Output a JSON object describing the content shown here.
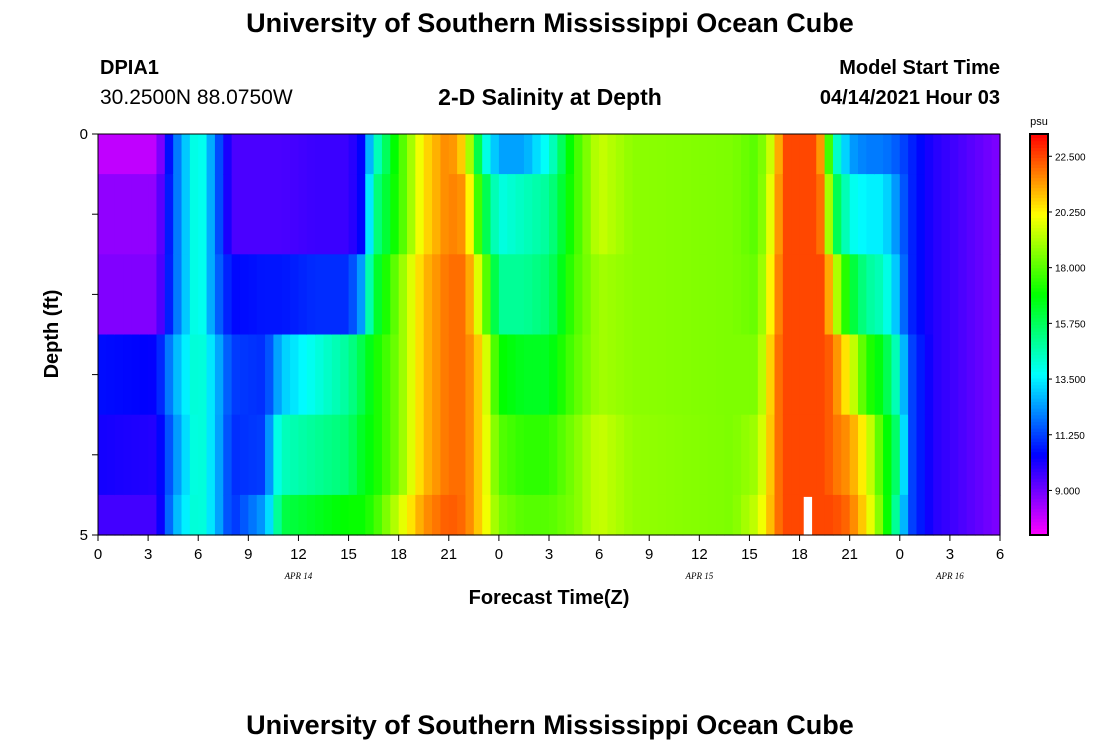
{
  "header": {
    "title_top": "University of Southern Mississippi Ocean Cube",
    "title_bottom": "University of Southern Mississippi Ocean Cube",
    "station_id": "DPIA1",
    "station_coords": "30.2500N  88.0750W",
    "plot_title": "2-D Salinity at Depth",
    "model_start_label": "Model Start Time",
    "model_start_value": "04/14/2021 Hour 03"
  },
  "chart_data": {
    "type": "heatmap",
    "title": "2-D Salinity at Depth",
    "xlabel": "Forecast Time(Z)",
    "ylabel": "Depth (ft)",
    "x_tick_labels": [
      "0",
      "3",
      "6",
      "9",
      "12",
      "15",
      "18",
      "21",
      "0",
      "3",
      "6",
      "9",
      "12",
      "15",
      "18",
      "21",
      "0",
      "3",
      "6"
    ],
    "x_hours": [
      0,
      3,
      6,
      9,
      12,
      15,
      18,
      21,
      24,
      27,
      30,
      33,
      36,
      39,
      42,
      45,
      48,
      51,
      54
    ],
    "date_labels": [
      {
        "text": "APR  14",
        "hour": 12
      },
      {
        "text": "APR  15",
        "hour": 36
      },
      {
        "text": "APR  16",
        "hour": 51
      }
    ],
    "y_tick_labels": [
      "0",
      "5"
    ],
    "ylim": [
      0,
      5
    ],
    "depth_rows": [
      0,
      1,
      2,
      3,
      4,
      5
    ],
    "colorbar": {
      "unit": "psu",
      "min": 7.2,
      "max": 23.4,
      "tick_labels": [
        "22.500",
        "20.250",
        "18.000",
        "15.750",
        "13.500",
        "11.250",
        "9.000"
      ],
      "tick_values": [
        22.5,
        20.25,
        18.0,
        15.75,
        13.5,
        11.25,
        9.0
      ]
    },
    "keyframes": [
      {
        "hour": 0,
        "values": [
          8.0,
          8.6,
          8.8,
          10.6,
          10.2,
          9.6
        ]
      },
      {
        "hour": 3.5,
        "values": [
          8.0,
          8.6,
          8.8,
          10.4,
          10.0,
          9.6
        ]
      },
      {
        "hour": 4.5,
        "values": [
          11.5,
          11.5,
          11.5,
          12.5,
          12.0,
          12.5
        ]
      },
      {
        "hour": 6,
        "values": [
          14.5,
          14.5,
          14.5,
          14.5,
          14.5,
          14.5
        ]
      },
      {
        "hour": 7,
        "values": [
          12.0,
          12.0,
          12.0,
          13.0,
          13.0,
          13.0
        ]
      },
      {
        "hour": 8,
        "values": [
          9.5,
          9.5,
          10.5,
          11.2,
          11.0,
          11.0
        ]
      },
      {
        "hour": 10,
        "values": [
          9.5,
          9.5,
          10.7,
          11.0,
          11.2,
          12.5
        ]
      },
      {
        "hour": 10.5,
        "values": [
          9.5,
          9.5,
          10.7,
          12.0,
          13.5,
          14.0
        ]
      },
      {
        "hour": 11,
        "values": [
          9.5,
          9.5,
          10.7,
          13.0,
          14.5,
          16.0
        ]
      },
      {
        "hour": 13,
        "values": [
          9.7,
          9.7,
          11.0,
          14.0,
          15.0,
          16.5
        ]
      },
      {
        "hour": 15,
        "values": [
          9.7,
          9.7,
          11.0,
          15.0,
          15.5,
          17.0
        ]
      },
      {
        "hour": 15.8,
        "values": [
          10.5,
          10.5,
          12.5,
          16.0,
          16.5,
          17.0
        ]
      },
      {
        "hour": 16.5,
        "values": [
          14.0,
          15.0,
          16.0,
          17.0,
          17.0,
          17.5
        ]
      },
      {
        "hour": 18,
        "values": [
          17.5,
          17.5,
          18.5,
          18.5,
          18.5,
          19.5
        ]
      },
      {
        "hour": 19.5,
        "values": [
          20.5,
          20.5,
          21.0,
          21.0,
          21.0,
          21.5
        ]
      },
      {
        "hour": 21,
        "values": [
          21.8,
          21.8,
          22.0,
          22.0,
          22.0,
          22.3
        ]
      },
      {
        "hour": 22,
        "values": [
          20.5,
          21.5,
          22.0,
          22.0,
          22.0,
          22.0
        ]
      },
      {
        "hour": 23,
        "values": [
          14.5,
          16.5,
          19.0,
          20.5,
          20.5,
          20.5
        ]
      },
      {
        "hour": 24,
        "values": [
          12.5,
          14.0,
          15.0,
          17.0,
          18.0,
          18.5
        ]
      },
      {
        "hour": 25.5,
        "values": [
          12.5,
          14.5,
          15.0,
          16.5,
          17.5,
          18.0
        ]
      },
      {
        "hour": 27,
        "values": [
          14.0,
          15.0,
          15.5,
          16.5,
          17.5,
          18.0
        ]
      },
      {
        "hour": 28.5,
        "values": [
          17.5,
          17.5,
          17.8,
          18.0,
          18.5,
          18.5
        ]
      },
      {
        "hour": 30,
        "values": [
          19.5,
          19.5,
          19.0,
          19.0,
          19.5,
          19.5
        ]
      },
      {
        "hour": 32,
        "values": [
          18.7,
          18.7,
          18.7,
          18.7,
          18.8,
          18.8
        ]
      },
      {
        "hour": 38,
        "values": [
          18.5,
          18.5,
          18.5,
          18.5,
          18.5,
          18.5
        ]
      },
      {
        "hour": 39.5,
        "values": [
          18.0,
          18.0,
          18.2,
          18.5,
          19.0,
          19.5
        ]
      },
      {
        "hour": 40.5,
        "values": [
          20.0,
          20.5,
          21.0,
          21.5,
          21.5,
          21.5
        ]
      },
      {
        "hour": 41,
        "values": [
          22.5,
          22.5,
          22.5,
          22.5,
          22.5,
          22.5
        ]
      },
      {
        "hour": 43,
        "values": [
          22.5,
          22.5,
          22.5,
          22.5,
          22.5,
          22.5
        ]
      },
      {
        "hour": 43.5,
        "values": [
          20.5,
          21.5,
          22.5,
          22.5,
          22.5,
          22.5
        ]
      },
      {
        "hour": 44,
        "values": [
          15.0,
          16.5,
          20.0,
          22.0,
          22.0,
          22.5
        ]
      },
      {
        "hour": 45,
        "values": [
          12.5,
          14.0,
          16.5,
          20.0,
          21.5,
          22.0
        ]
      },
      {
        "hour": 46,
        "values": [
          12.0,
          13.5,
          15.0,
          17.5,
          20.0,
          20.5
        ]
      },
      {
        "hour": 47,
        "values": [
          12.0,
          13.5,
          14.5,
          16.5,
          17.5,
          18.0
        ]
      },
      {
        "hour": 48,
        "values": [
          11.5,
          12.0,
          12.5,
          14.0,
          15.0,
          14.0
        ]
      },
      {
        "hour": 48.5,
        "values": [
          11.0,
          11.0,
          11.0,
          11.5,
          11.5,
          11.5
        ]
      },
      {
        "hour": 50,
        "values": [
          10.0,
          10.0,
          10.0,
          10.0,
          10.0,
          10.0
        ]
      },
      {
        "hour": 54,
        "values": [
          8.8,
          8.8,
          8.8,
          8.8,
          8.8,
          8.8
        ]
      }
    ],
    "missing_data_hours": [
      42.25,
      42.75
    ]
  }
}
